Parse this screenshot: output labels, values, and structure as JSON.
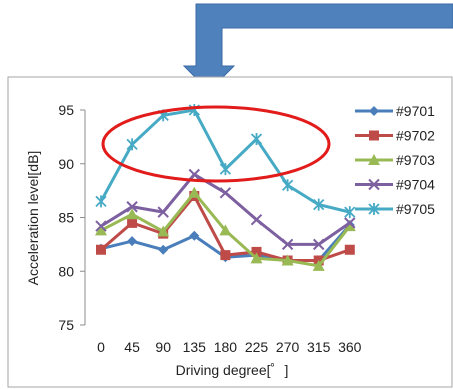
{
  "chart_data": {
    "type": "line",
    "categories": [
      "0",
      "45",
      "90",
      "135",
      "180",
      "225",
      "270",
      "315",
      "360"
    ],
    "xlabel": "Driving degree[゜]",
    "ylabel": "Acceleration level[dB]",
    "ylim": [
      75,
      95
    ],
    "yticks": [
      75,
      80,
      85,
      90,
      95
    ],
    "grid": false,
    "legend_position": "right",
    "series": [
      {
        "name": "#9701",
        "color": "#4a7ebb",
        "marker": "diamond",
        "values": [
          82.1,
          82.8,
          82.0,
          83.3,
          81.3,
          81.5,
          81.0,
          81.0,
          84.3
        ]
      },
      {
        "name": "#9702",
        "color": "#be4b48",
        "marker": "square",
        "values": [
          82.0,
          84.5,
          83.5,
          87.0,
          81.5,
          81.8,
          81.0,
          81.0,
          82.0
        ]
      },
      {
        "name": "#9703",
        "color": "#98b954",
        "marker": "triangle",
        "values": [
          83.8,
          85.3,
          83.7,
          87.3,
          83.8,
          81.2,
          81.0,
          80.5,
          84.2
        ]
      },
      {
        "name": "#9704",
        "color": "#7d60a0",
        "marker": "x",
        "values": [
          84.2,
          86.0,
          85.5,
          89.0,
          87.3,
          84.8,
          82.5,
          82.5,
          84.5
        ]
      },
      {
        "name": "#9705",
        "color": "#46aac5",
        "marker": "star",
        "values": [
          86.5,
          91.8,
          94.5,
          95.0,
          89.5,
          92.3,
          88.0,
          86.2,
          85.5
        ]
      }
    ]
  },
  "annotations": {
    "arrow_color": "#4f81bd",
    "ellipse_color": "#e21b1b"
  }
}
